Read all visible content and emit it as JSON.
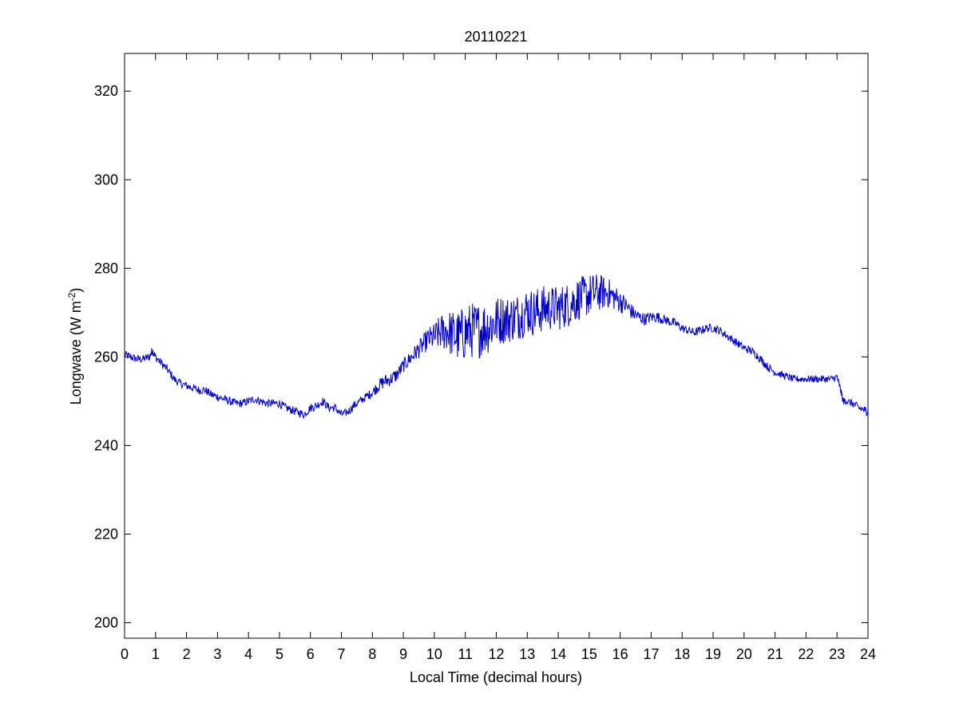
{
  "chart_data": {
    "type": "line",
    "title": "20110221",
    "xlabel": "Local Time (decimal hours)",
    "ylabel": "Longwave (W m",
    "ylabel_superscript": "-2",
    "ylabel_suffix": ")",
    "xlim": [
      0,
      24
    ],
    "ylim": [
      196.5,
      328.5
    ],
    "xticks": [
      0,
      1,
      2,
      3,
      4,
      5,
      6,
      7,
      8,
      9,
      10,
      11,
      12,
      13,
      14,
      15,
      16,
      17,
      18,
      19,
      20,
      21,
      22,
      23,
      24
    ],
    "yticks": [
      200,
      220,
      240,
      260,
      280,
      300,
      320
    ],
    "grid": false,
    "line_color": "#0000c8",
    "series": [
      {
        "x": [
          0,
          0.2,
          0.4,
          0.6,
          0.8,
          0.9,
          1.0,
          1.2,
          1.4,
          1.6,
          1.8,
          2.0,
          2.2,
          2.4,
          2.6,
          2.8,
          3.0,
          3.2,
          3.4,
          3.6,
          3.8,
          4.0,
          4.2,
          4.4,
          4.6,
          4.8,
          5.0,
          5.2,
          5.4,
          5.6,
          5.8,
          6.0,
          6.2,
          6.4,
          6.6,
          6.8,
          7.0,
          7.2,
          7.4,
          7.6,
          7.8,
          8.0,
          8.2,
          8.4,
          8.6,
          8.8,
          9.0,
          9.2,
          9.4,
          9.6,
          9.8,
          10.0,
          10.2,
          10.4,
          10.6,
          10.8,
          11.0,
          11.2,
          11.4,
          11.6,
          11.8,
          12.0,
          12.2,
          12.4,
          12.6,
          12.8,
          13.0,
          13.2,
          13.4,
          13.6,
          13.8,
          14.0,
          14.2,
          14.4,
          14.6,
          14.8,
          15.0,
          15.2,
          15.4,
          15.6,
          15.8,
          16.0,
          16.2,
          16.4,
          16.6,
          16.8,
          17.0,
          17.2,
          17.4,
          17.6,
          17.8,
          18.0,
          18.2,
          18.4,
          18.6,
          18.8,
          19.0,
          19.2,
          19.4,
          19.6,
          19.8,
          20.0,
          20.2,
          20.4,
          20.6,
          20.8,
          21.0,
          21.2,
          21.4,
          21.6,
          21.8,
          22.0,
          22.2,
          22.4,
          22.6,
          22.8,
          23.0,
          23.1,
          23.2,
          23.3,
          23.5,
          23.7,
          23.9,
          24.0
        ],
        "y": [
          260.5,
          260,
          259.5,
          259.5,
          260,
          261.5,
          260,
          258.5,
          257,
          255,
          254,
          253.5,
          253,
          252.5,
          252.5,
          251.5,
          251,
          250.5,
          250,
          249.5,
          249.5,
          250,
          250.5,
          250,
          249.5,
          249.5,
          249.5,
          248.5,
          248,
          247.5,
          247,
          248.5,
          249,
          250,
          248.5,
          248.5,
          247,
          247.5,
          249,
          250,
          251,
          252,
          253.5,
          254.5,
          255,
          256,
          258,
          259.5,
          261,
          262.5,
          264,
          264.5,
          265.5,
          266,
          265,
          264.5,
          265.5,
          266,
          266,
          266.5,
          267,
          268,
          268.5,
          268.5,
          269,
          269.5,
          270.5,
          270,
          270.5,
          271,
          271,
          271,
          271.5,
          272,
          273,
          273.5,
          274,
          274.5,
          274.5,
          274.5,
          273.5,
          272.5,
          271.5,
          270,
          269,
          268.5,
          269,
          269,
          268.5,
          268,
          267.5,
          266.5,
          266,
          265.5,
          266,
          266.5,
          266.5,
          266,
          265,
          264,
          263,
          262,
          261.5,
          260.5,
          259,
          257.5,
          256.5,
          256,
          255.5,
          255,
          255,
          255,
          255,
          255,
          255,
          255,
          255.5,
          253,
          250,
          250,
          249.5,
          248.5,
          248,
          247.5
        ],
        "noise": [
          0.6,
          0.6,
          0.6,
          0.6,
          0.6,
          0.6,
          0.6,
          0.6,
          0.6,
          0.6,
          0.6,
          0.6,
          0.6,
          0.6,
          0.6,
          0.6,
          0.6,
          0.6,
          0.6,
          0.6,
          0.6,
          0.6,
          0.6,
          0.6,
          0.6,
          0.6,
          0.6,
          0.6,
          0.6,
          0.6,
          0.6,
          0.6,
          0.6,
          0.6,
          0.6,
          0.6,
          0.6,
          0.6,
          0.6,
          0.6,
          0.6,
          0.7,
          0.9,
          1,
          1,
          1,
          1,
          1.1,
          1.2,
          1.4,
          1.6,
          2,
          2.5,
          3,
          3.5,
          3.8,
          4,
          4,
          4,
          4,
          3.8,
          3.6,
          3.5,
          3.4,
          3.4,
          3.4,
          3.4,
          3.4,
          3.4,
          3.3,
          3.2,
          3.2,
          3.2,
          3.2,
          3.1,
          3,
          3,
          2.8,
          2.5,
          2.2,
          1.9,
          1.6,
          1.3,
          1.1,
          1,
          0.9,
          0.8,
          0.8,
          0.7,
          0.7,
          0.7,
          0.6,
          0.6,
          0.6,
          0.6,
          0.6,
          0.6,
          0.6,
          0.6,
          0.6,
          0.6,
          0.6,
          0.6,
          0.6,
          0.6,
          0.6,
          0.5,
          0.5,
          0.5,
          0.5,
          0.5,
          0.5,
          0.5,
          0.5,
          0.5,
          0.5,
          0.5,
          0.5,
          0.5,
          0.5,
          0.6,
          0.6,
          0.6,
          0.6,
          0.6
        ]
      }
    ]
  }
}
